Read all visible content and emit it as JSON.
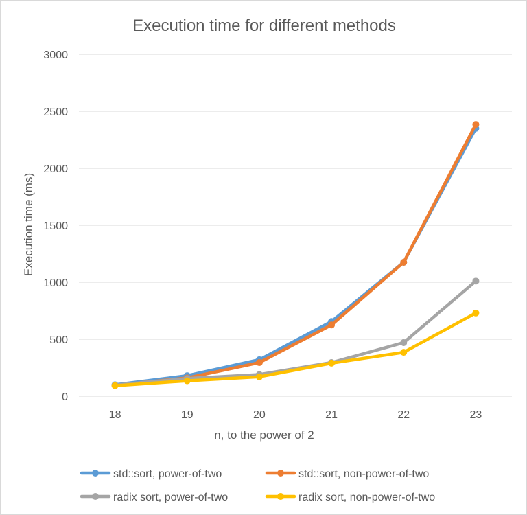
{
  "chart_data": {
    "type": "line",
    "title": "Execution time for different methods",
    "xlabel": "n, to the power of 2",
    "ylabel": "Execution time (ms)",
    "categories": [
      "18",
      "19",
      "20",
      "21",
      "22",
      "23"
    ],
    "ylim": [
      0,
      3000
    ],
    "yticks": [
      0,
      500,
      1000,
      1500,
      2000,
      2500,
      3000
    ],
    "grid": true,
    "legend_position": "bottom",
    "series": [
      {
        "name": "std::sort, power-of-two",
        "color": "#5B9BD5",
        "values": [
          100,
          180,
          320,
          655,
          1175,
          2350
        ]
      },
      {
        "name": "std::sort, non-power-of-two",
        "color": "#ED7D31",
        "values": [
          95,
          160,
          295,
          625,
          1175,
          2385
        ]
      },
      {
        "name": "radix sort, power-of-two",
        "color": "#A5A5A5",
        "values": [
          98,
          155,
          190,
          295,
          470,
          1010
        ]
      },
      {
        "name": "radix sort, non-power-of-two",
        "color": "#FFC000",
        "values": [
          92,
          135,
          170,
          290,
          385,
          730
        ]
      }
    ]
  }
}
